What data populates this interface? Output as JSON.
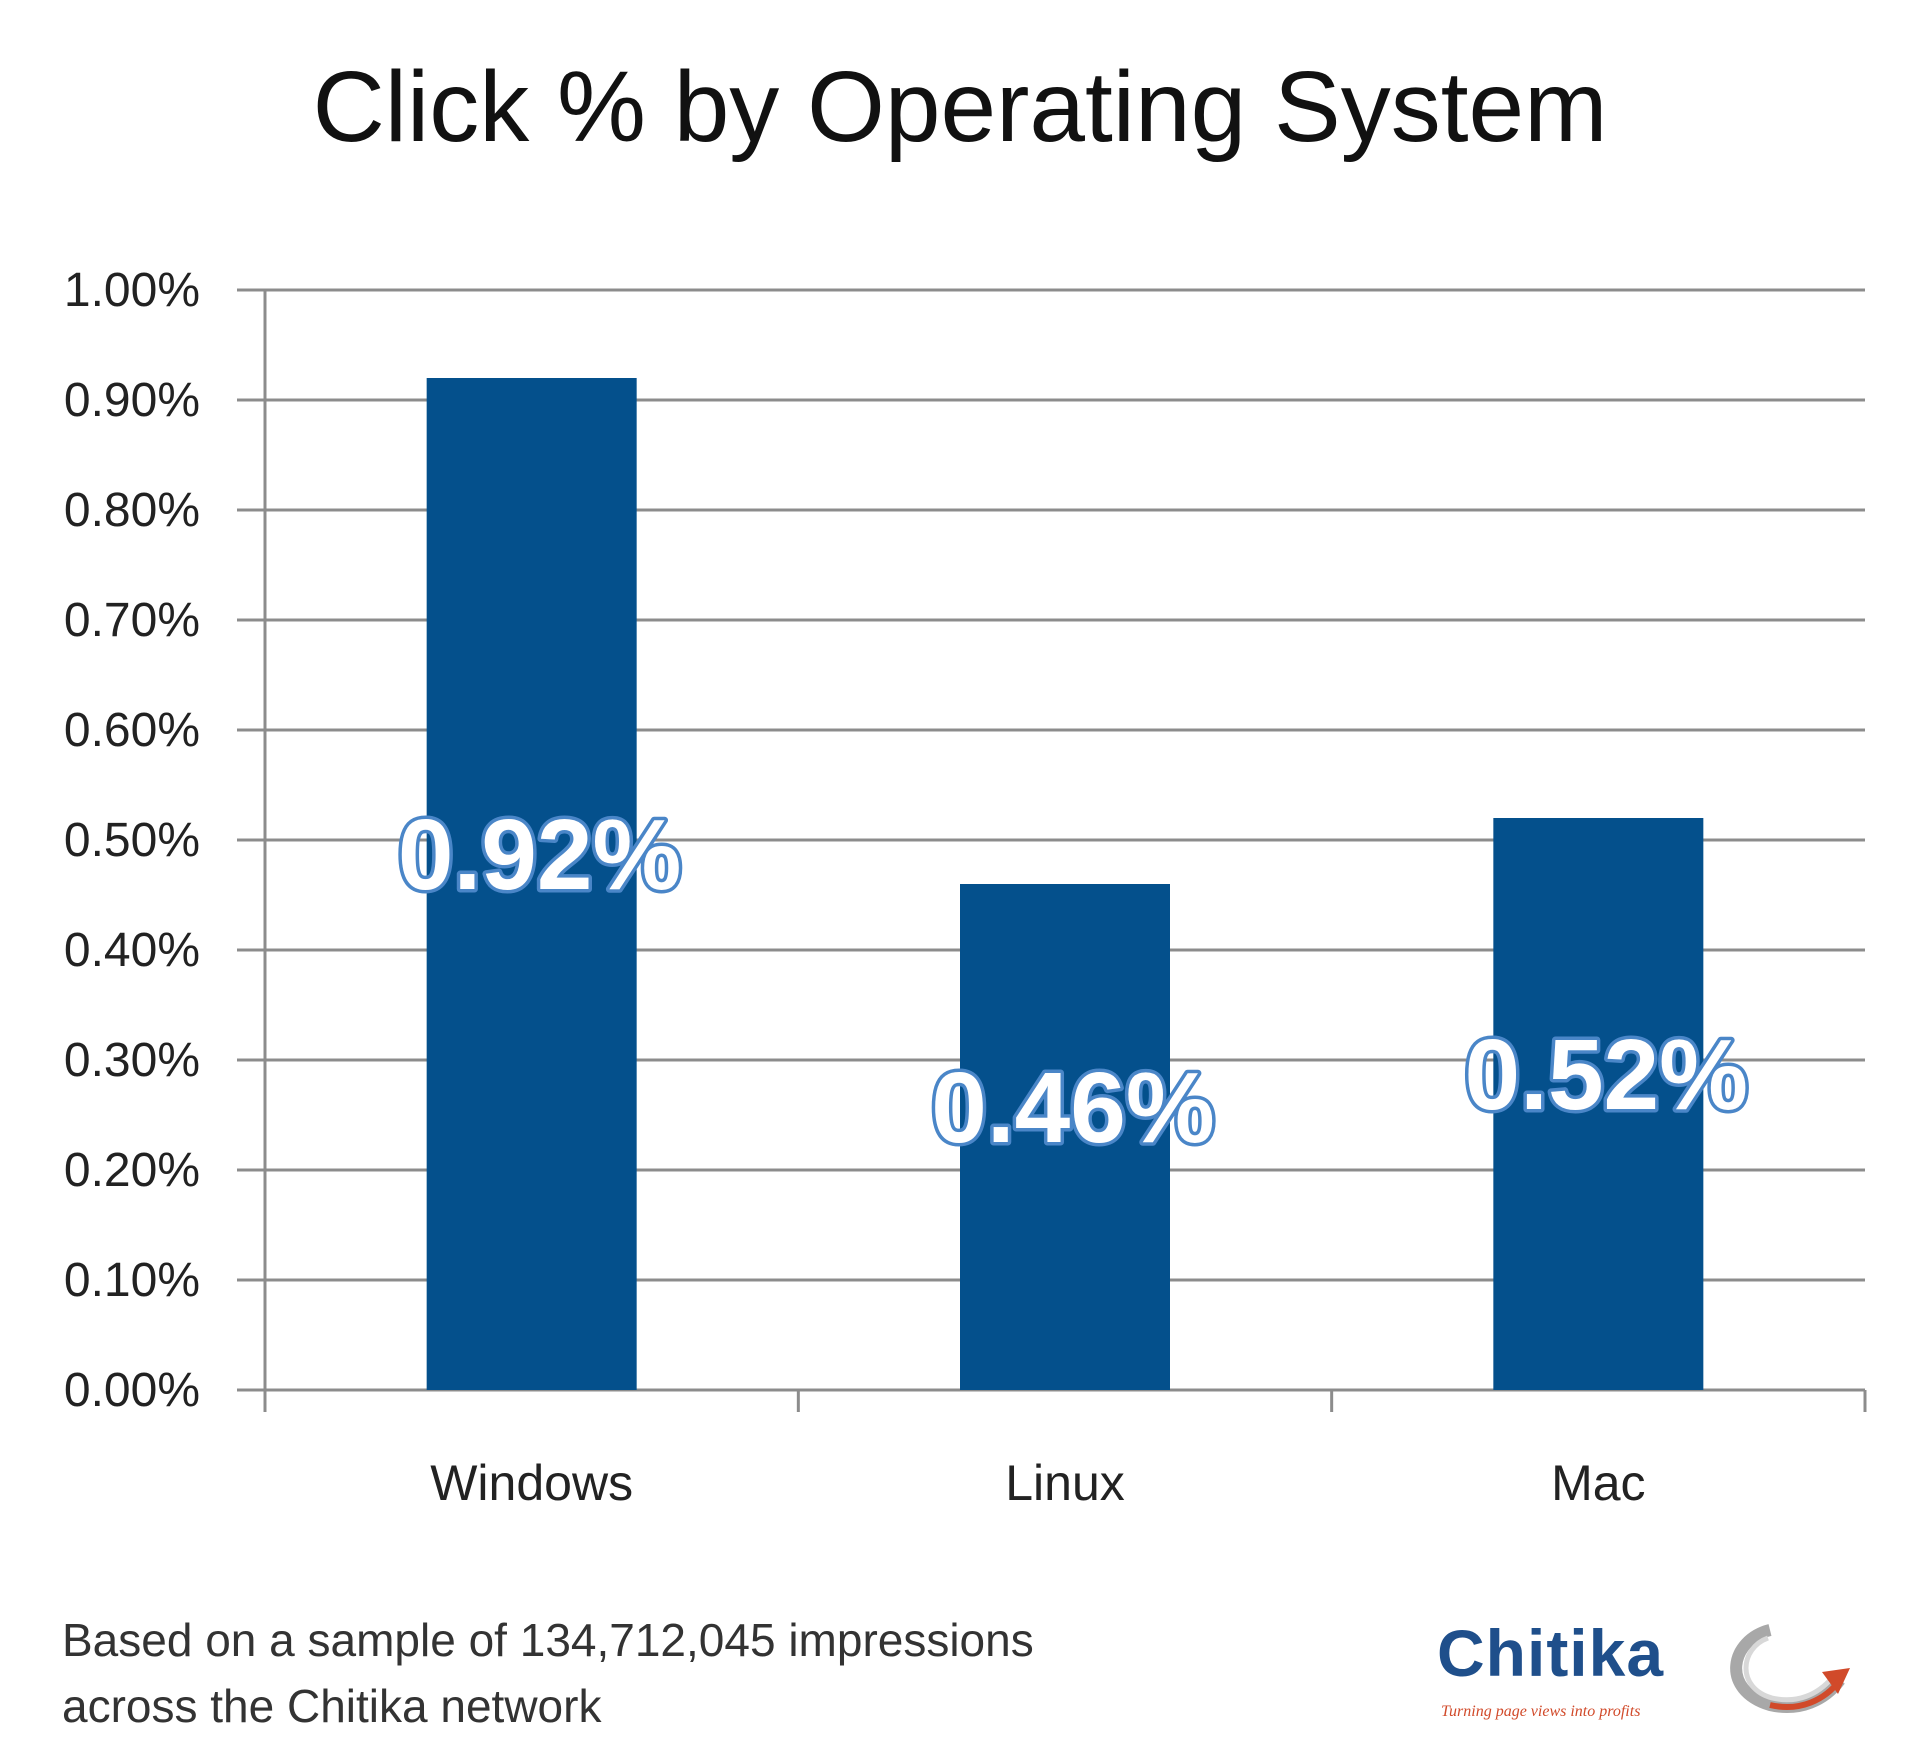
{
  "chart_data": {
    "type": "bar",
    "title": "Click % by Operating System",
    "xlabel": "",
    "ylabel": "",
    "categories": [
      "Windows",
      "Linux",
      "Mac"
    ],
    "values": [
      0.92,
      0.46,
      0.52
    ],
    "value_labels": [
      "0.92%",
      "0.46%",
      "0.52%"
    ],
    "ylim": [
      0,
      1.0
    ],
    "y_ticks": [
      0.0,
      0.1,
      0.2,
      0.3,
      0.4,
      0.5,
      0.6,
      0.7,
      0.8,
      0.9,
      1.0
    ],
    "y_tick_labels": [
      "0.00%",
      "0.10%",
      "0.20%",
      "0.30%",
      "0.40%",
      "0.50%",
      "0.60%",
      "0.70%",
      "0.80%",
      "0.90%",
      "1.00%"
    ],
    "grid": true,
    "legend": "none",
    "bar_color": "#04508c",
    "label_color": "#ffffff",
    "label_outline_color": "#4a86c8"
  },
  "footnote": {
    "line1": "Based on a sample of 134,712,045 impressions",
    "line2": "across the Chitika network"
  },
  "logo": {
    "brand": "Chitika",
    "tagline": "Turning page views into profits",
    "brand_color": "#1f4f8b",
    "accent_color": "#d14a2a"
  }
}
